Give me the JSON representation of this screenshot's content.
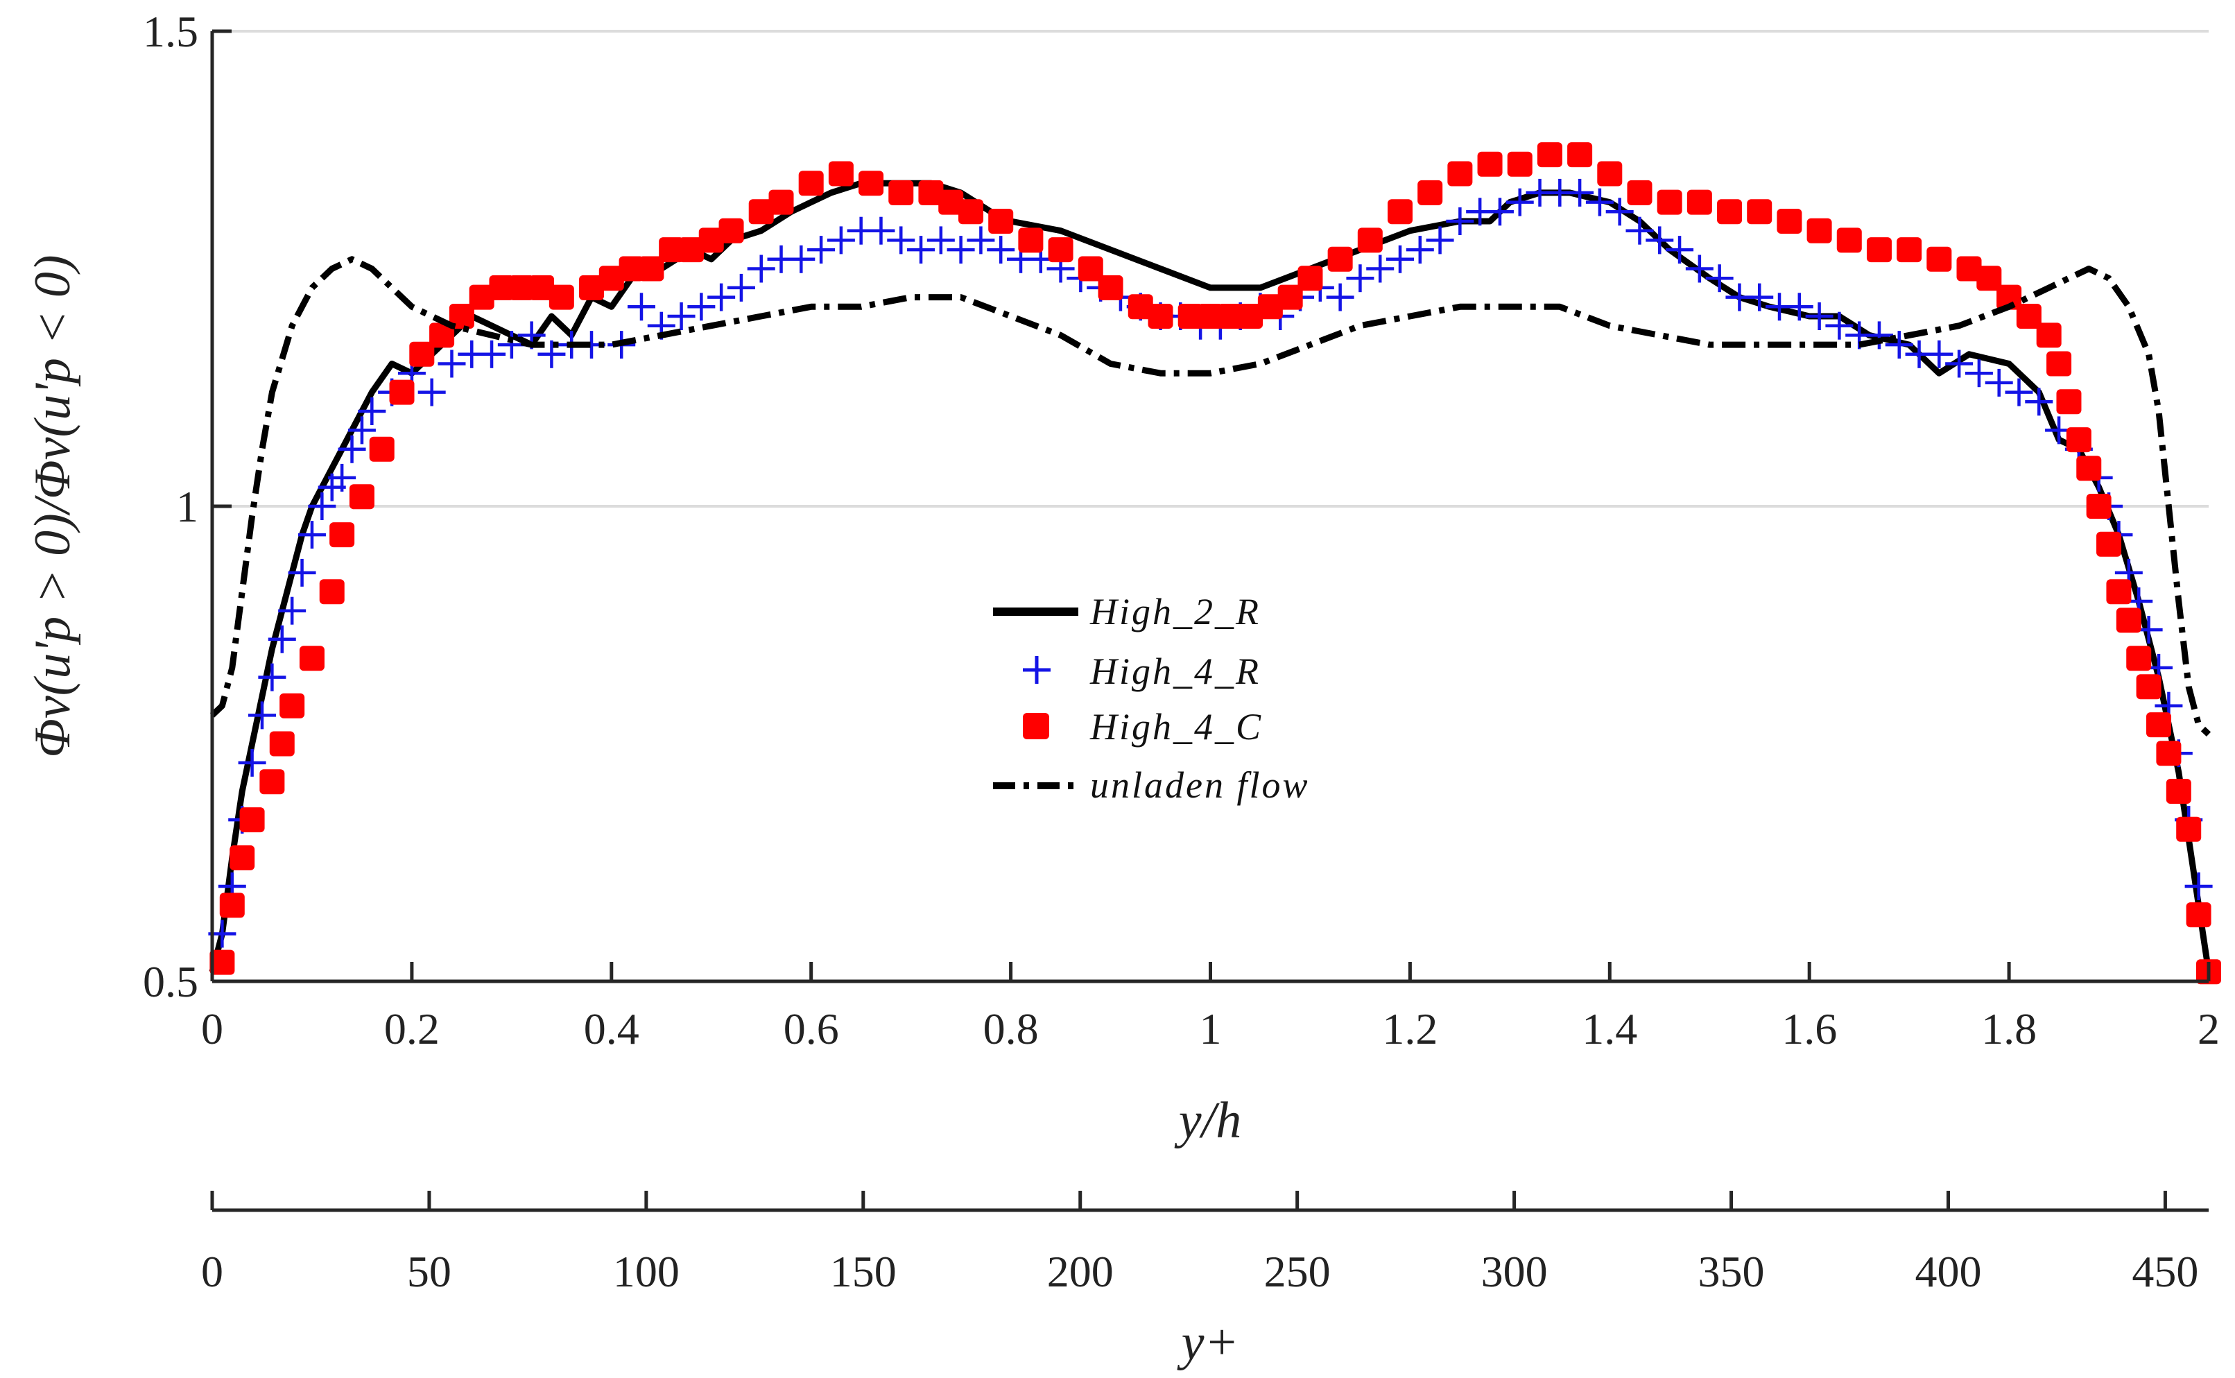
{
  "chart_data": {
    "type": "line",
    "title": "",
    "xlabel": "y/h",
    "x2label": "y+",
    "ylabel": "Φv(u'p > 0)/Φv(u'p < 0)",
    "xlim": [
      0,
      2
    ],
    "ylim": [
      0.5,
      1.5
    ],
    "x2lim": [
      0,
      460
    ],
    "xticks": [
      "0",
      "0.2",
      "0.4",
      "0.6",
      "0.8",
      "1",
      "1.2",
      "1.4",
      "1.6",
      "1.8",
      "2"
    ],
    "yticks": [
      "0.5",
      "1",
      "1.5"
    ],
    "x2ticks": [
      "0",
      "50",
      "100",
      "150",
      "200",
      "250",
      "300",
      "350",
      "400",
      "450"
    ],
    "grid": "horizontal",
    "legend_position": "center",
    "series": [
      {
        "name": "High_2_R",
        "style": "solid",
        "color": "#000000",
        "x": [
          0.0,
          0.01,
          0.02,
          0.03,
          0.04,
          0.05,
          0.06,
          0.07,
          0.08,
          0.09,
          0.1,
          0.12,
          0.14,
          0.16,
          0.18,
          0.2,
          0.22,
          0.24,
          0.26,
          0.28,
          0.3,
          0.32,
          0.34,
          0.36,
          0.38,
          0.4,
          0.42,
          0.45,
          0.48,
          0.5,
          0.52,
          0.55,
          0.58,
          0.6,
          0.62,
          0.65,
          0.68,
          0.72,
          0.75,
          0.78,
          0.8,
          0.85,
          0.9,
          0.95,
          1.0,
          1.05,
          1.1,
          1.15,
          1.2,
          1.25,
          1.28,
          1.3,
          1.33,
          1.36,
          1.4,
          1.43,
          1.46,
          1.5,
          1.53,
          1.56,
          1.6,
          1.63,
          1.66,
          1.7,
          1.73,
          1.76,
          1.8,
          1.83,
          1.85,
          1.87,
          1.89,
          1.91,
          1.93,
          1.95,
          1.97,
          1.99,
          2.0
        ],
        "y": [
          0.51,
          0.55,
          0.63,
          0.7,
          0.75,
          0.8,
          0.85,
          0.89,
          0.93,
          0.97,
          1.0,
          1.04,
          1.08,
          1.12,
          1.15,
          1.14,
          1.16,
          1.18,
          1.2,
          1.19,
          1.18,
          1.17,
          1.2,
          1.18,
          1.22,
          1.21,
          1.24,
          1.25,
          1.27,
          1.26,
          1.28,
          1.29,
          1.31,
          1.32,
          1.33,
          1.34,
          1.34,
          1.34,
          1.33,
          1.31,
          1.3,
          1.29,
          1.27,
          1.25,
          1.23,
          1.23,
          1.25,
          1.27,
          1.29,
          1.3,
          1.3,
          1.32,
          1.33,
          1.33,
          1.32,
          1.3,
          1.27,
          1.24,
          1.22,
          1.21,
          1.2,
          1.2,
          1.18,
          1.17,
          1.14,
          1.16,
          1.15,
          1.12,
          1.07,
          1.06,
          1.02,
          0.97,
          0.9,
          0.82,
          0.72,
          0.58,
          0.51
        ]
      },
      {
        "name": "High_4_R",
        "style": "marker-plus",
        "color": "#1414e6",
        "x": [
          0.01,
          0.02,
          0.03,
          0.04,
          0.05,
          0.06,
          0.07,
          0.08,
          0.09,
          0.1,
          0.11,
          0.12,
          0.13,
          0.14,
          0.15,
          0.16,
          0.18,
          0.2,
          0.22,
          0.24,
          0.26,
          0.28,
          0.3,
          0.32,
          0.34,
          0.36,
          0.38,
          0.41,
          0.43,
          0.45,
          0.47,
          0.49,
          0.51,
          0.53,
          0.55,
          0.57,
          0.59,
          0.61,
          0.63,
          0.65,
          0.67,
          0.69,
          0.71,
          0.73,
          0.75,
          0.77,
          0.79,
          0.81,
          0.83,
          0.85,
          0.87,
          0.89,
          0.91,
          0.93,
          0.95,
          0.97,
          0.99,
          1.01,
          1.03,
          1.05,
          1.07,
          1.09,
          1.11,
          1.13,
          1.15,
          1.17,
          1.19,
          1.21,
          1.23,
          1.25,
          1.27,
          1.29,
          1.31,
          1.33,
          1.35,
          1.37,
          1.39,
          1.41,
          1.43,
          1.45,
          1.47,
          1.49,
          1.51,
          1.53,
          1.55,
          1.57,
          1.59,
          1.61,
          1.63,
          1.65,
          1.67,
          1.69,
          1.71,
          1.73,
          1.75,
          1.77,
          1.79,
          1.81,
          1.83,
          1.85,
          1.87,
          1.89,
          1.9,
          1.91,
          1.92,
          1.93,
          1.94,
          1.95,
          1.96,
          1.97,
          1.98,
          1.99
        ],
        "y": [
          0.55,
          0.6,
          0.67,
          0.73,
          0.78,
          0.82,
          0.86,
          0.89,
          0.93,
          0.97,
          1.0,
          1.02,
          1.03,
          1.06,
          1.08,
          1.1,
          1.12,
          1.14,
          1.12,
          1.15,
          1.16,
          1.16,
          1.17,
          1.18,
          1.16,
          1.17,
          1.17,
          1.17,
          1.21,
          1.19,
          1.2,
          1.21,
          1.22,
          1.23,
          1.25,
          1.26,
          1.26,
          1.27,
          1.28,
          1.29,
          1.29,
          1.28,
          1.27,
          1.28,
          1.27,
          1.28,
          1.27,
          1.26,
          1.26,
          1.25,
          1.24,
          1.23,
          1.22,
          1.21,
          1.2,
          1.2,
          1.19,
          1.19,
          1.2,
          1.21,
          1.2,
          1.22,
          1.23,
          1.22,
          1.24,
          1.25,
          1.26,
          1.27,
          1.28,
          1.3,
          1.31,
          1.31,
          1.32,
          1.33,
          1.33,
          1.33,
          1.32,
          1.31,
          1.29,
          1.28,
          1.27,
          1.25,
          1.24,
          1.22,
          1.22,
          1.21,
          1.21,
          1.2,
          1.19,
          1.18,
          1.18,
          1.17,
          1.16,
          1.16,
          1.15,
          1.14,
          1.13,
          1.12,
          1.11,
          1.08,
          1.06,
          1.03,
          1.0,
          0.97,
          0.93,
          0.9,
          0.87,
          0.83,
          0.79,
          0.74,
          0.67,
          0.6
        ]
      },
      {
        "name": "High_4_C",
        "style": "marker-square",
        "color": "#ff0000",
        "x": [
          0.01,
          0.02,
          0.03,
          0.04,
          0.06,
          0.07,
          0.08,
          0.1,
          0.12,
          0.13,
          0.15,
          0.17,
          0.19,
          0.21,
          0.23,
          0.25,
          0.27,
          0.29,
          0.31,
          0.33,
          0.35,
          0.38,
          0.4,
          0.42,
          0.44,
          0.46,
          0.48,
          0.5,
          0.52,
          0.55,
          0.57,
          0.6,
          0.63,
          0.66,
          0.69,
          0.72,
          0.74,
          0.76,
          0.79,
          0.82,
          0.85,
          0.88,
          0.9,
          0.93,
          0.95,
          0.98,
          1.0,
          1.02,
          1.04,
          1.06,
          1.08,
          1.1,
          1.13,
          1.16,
          1.19,
          1.22,
          1.25,
          1.28,
          1.31,
          1.34,
          1.37,
          1.4,
          1.43,
          1.46,
          1.49,
          1.52,
          1.55,
          1.58,
          1.61,
          1.64,
          1.67,
          1.7,
          1.73,
          1.76,
          1.78,
          1.8,
          1.82,
          1.84,
          1.85,
          1.86,
          1.87,
          1.88,
          1.89,
          1.9,
          1.91,
          1.92,
          1.93,
          1.94,
          1.95,
          1.96,
          1.97,
          1.98,
          1.99,
          2.0
        ],
        "y": [
          0.52,
          0.58,
          0.63,
          0.67,
          0.71,
          0.75,
          0.79,
          0.84,
          0.91,
          0.97,
          1.01,
          1.06,
          1.12,
          1.16,
          1.18,
          1.2,
          1.22,
          1.23,
          1.23,
          1.23,
          1.22,
          1.23,
          1.24,
          1.25,
          1.25,
          1.27,
          1.27,
          1.28,
          1.29,
          1.31,
          1.32,
          1.34,
          1.35,
          1.34,
          1.33,
          1.33,
          1.32,
          1.31,
          1.3,
          1.28,
          1.27,
          1.25,
          1.23,
          1.21,
          1.2,
          1.2,
          1.2,
          1.2,
          1.2,
          1.21,
          1.22,
          1.24,
          1.26,
          1.28,
          1.31,
          1.33,
          1.35,
          1.36,
          1.36,
          1.37,
          1.37,
          1.35,
          1.33,
          1.32,
          1.32,
          1.31,
          1.31,
          1.3,
          1.29,
          1.28,
          1.27,
          1.27,
          1.26,
          1.25,
          1.24,
          1.22,
          1.2,
          1.18,
          1.15,
          1.11,
          1.07,
          1.04,
          1.0,
          0.96,
          0.91,
          0.88,
          0.84,
          0.81,
          0.77,
          0.74,
          0.7,
          0.66,
          0.57,
          0.51
        ]
      },
      {
        "name": "unladen flow",
        "style": "dashdot",
        "color": "#000000",
        "x": [
          0.0,
          0.01,
          0.02,
          0.03,
          0.04,
          0.05,
          0.06,
          0.08,
          0.1,
          0.12,
          0.14,
          0.16,
          0.18,
          0.2,
          0.24,
          0.28,
          0.32,
          0.36,
          0.4,
          0.45,
          0.5,
          0.55,
          0.6,
          0.65,
          0.7,
          0.75,
          0.8,
          0.85,
          0.9,
          0.95,
          1.0,
          1.05,
          1.1,
          1.15,
          1.2,
          1.25,
          1.3,
          1.35,
          1.4,
          1.45,
          1.5,
          1.55,
          1.6,
          1.65,
          1.7,
          1.75,
          1.8,
          1.84,
          1.86,
          1.88,
          1.9,
          1.92,
          1.94,
          1.95,
          1.96,
          1.97,
          1.98,
          1.99,
          2.0
        ],
        "y": [
          0.78,
          0.79,
          0.83,
          0.91,
          0.99,
          1.06,
          1.12,
          1.19,
          1.23,
          1.25,
          1.26,
          1.25,
          1.23,
          1.21,
          1.19,
          1.18,
          1.17,
          1.17,
          1.17,
          1.18,
          1.19,
          1.2,
          1.21,
          1.21,
          1.22,
          1.22,
          1.2,
          1.18,
          1.15,
          1.14,
          1.14,
          1.15,
          1.17,
          1.19,
          1.2,
          1.21,
          1.21,
          1.21,
          1.19,
          1.18,
          1.17,
          1.17,
          1.17,
          1.17,
          1.18,
          1.19,
          1.21,
          1.23,
          1.24,
          1.25,
          1.24,
          1.21,
          1.16,
          1.1,
          1.0,
          0.9,
          0.81,
          0.77,
          0.76
        ]
      }
    ]
  }
}
